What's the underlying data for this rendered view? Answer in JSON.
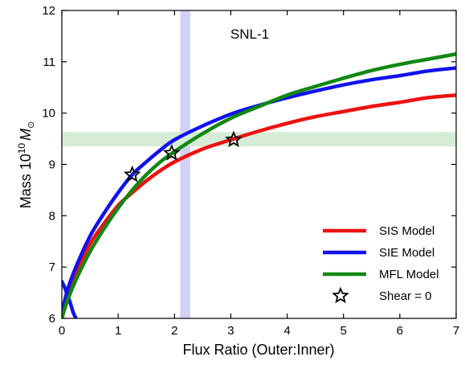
{
  "chart_data": {
    "type": "line",
    "annotation": "SNL-1",
    "xlabel": "Flux Ratio (Outer:Inner)",
    "ylabel_prefix": "Mass 10",
    "ylabel_exp": "10",
    "ylabel_unit": "M",
    "ylabel_sub": "⊙",
    "xlim": [
      0,
      7
    ],
    "ylim": [
      6,
      12
    ],
    "xticks": [
      0,
      1,
      2,
      3,
      4,
      5,
      6,
      7
    ],
    "yticks": [
      6,
      7,
      8,
      9,
      10,
      11,
      12
    ],
    "grid": false,
    "legend_position": "bottom-right",
    "bands": {
      "vertical": {
        "from": 2.1,
        "to": 2.28,
        "color": "#d2d2f9"
      },
      "horizontal": {
        "from": 9.35,
        "to": 9.63,
        "color": "#d6ecd6"
      }
    },
    "series": [
      {
        "name": "SIS Model",
        "color": "#ee1111",
        "x": [
          0,
          0.1,
          0.25,
          0.5,
          0.75,
          1.0,
          1.25,
          1.5,
          1.75,
          2.0,
          2.5,
          3.0,
          3.5,
          4.0,
          4.5,
          5.0,
          5.5,
          6.0,
          6.5,
          7.0
        ],
        "y": [
          6.0,
          6.45,
          6.9,
          7.45,
          7.85,
          8.2,
          8.45,
          8.68,
          8.88,
          9.05,
          9.3,
          9.48,
          9.65,
          9.8,
          9.93,
          10.03,
          10.13,
          10.21,
          10.3,
          10.35
        ]
      },
      {
        "name": "SIE Model",
        "color": "#1111ee",
        "x": [
          0,
          0.1,
          0.25,
          0.5,
          0.75,
          1.0,
          1.25,
          1.5,
          1.75,
          2.0,
          2.5,
          3.0,
          3.5,
          4.0,
          4.5,
          5.0,
          5.5,
          6.0,
          6.5,
          7.0
        ],
        "y": [
          6.1,
          6.55,
          7.0,
          7.6,
          8.05,
          8.45,
          8.8,
          9.05,
          9.28,
          9.48,
          9.75,
          9.98,
          10.15,
          10.3,
          10.43,
          10.55,
          10.65,
          10.73,
          10.82,
          10.88
        ]
      },
      {
        "name": "SIE Model branch",
        "color": "#1111ee",
        "x": [
          0,
          0.05,
          0.1,
          0.15,
          0.2,
          0.25
        ],
        "y": [
          6.72,
          6.6,
          6.45,
          6.3,
          6.12,
          6.0
        ]
      },
      {
        "name": "MFL Model",
        "color": "#118811",
        "x": [
          0,
          0.1,
          0.25,
          0.5,
          0.75,
          1.0,
          1.25,
          1.5,
          1.75,
          2.0,
          2.5,
          3.0,
          3.5,
          4.0,
          4.5,
          5.0,
          5.5,
          6.0,
          6.5,
          7.0
        ],
        "y": [
          6.0,
          6.35,
          6.75,
          7.3,
          7.75,
          8.15,
          8.5,
          8.8,
          9.05,
          9.25,
          9.6,
          9.9,
          10.13,
          10.35,
          10.52,
          10.68,
          10.83,
          10.95,
          11.05,
          11.15
        ]
      }
    ],
    "markers": {
      "name": "Shear = 0",
      "points": [
        {
          "x": 1.25,
          "y": 8.8
        },
        {
          "x": 1.95,
          "y": 9.22
        },
        {
          "x": 3.05,
          "y": 9.48
        }
      ]
    },
    "legend": [
      {
        "label": "SIS Model",
        "color": "#ee1111",
        "kind": "line"
      },
      {
        "label": "SIE Model",
        "color": "#1111ee",
        "kind": "line"
      },
      {
        "label": "MFL Model",
        "color": "#118811",
        "kind": "line"
      },
      {
        "label": "Shear = 0",
        "color": "#000000",
        "kind": "star"
      }
    ]
  }
}
